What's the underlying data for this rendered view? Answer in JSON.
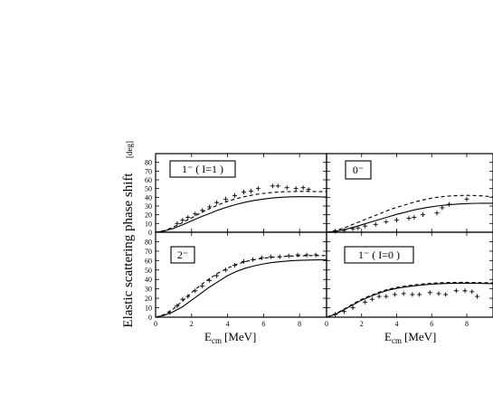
{
  "figure": {
    "ylabel": "Elastic scattering phase shift",
    "ylabel_unit": "[deg]",
    "xlabel_main": "E",
    "xlabel_sub": "cm",
    "xlabel_unit": "[MeV]"
  },
  "chart_data": [
    {
      "type": "line",
      "panel": "1- (I=1)",
      "title": "1⁻ ( I=1 )",
      "xlim": [
        0,
        9.5
      ],
      "ylim": [
        0,
        90
      ],
      "xticks": [
        0,
        2,
        4,
        6,
        8
      ],
      "yticks": [
        0,
        10,
        20,
        30,
        40,
        50,
        60,
        70,
        80
      ],
      "series": [
        {
          "style": "solid",
          "x": [
            0,
            0.5,
            1,
            1.5,
            2,
            2.5,
            3,
            3.5,
            4,
            4.5,
            5,
            5.5,
            6,
            6.5,
            7,
            7.5,
            8,
            8.5,
            9,
            9.5
          ],
          "y": [
            0,
            1.5,
            4.5,
            8.5,
            13,
            17.5,
            21.5,
            25.5,
            29,
            32,
            34.5,
            36.5,
            38,
            39.2,
            40,
            40.5,
            40.7,
            40.7,
            40.5,
            40.3
          ]
        },
        {
          "style": "dashed",
          "x": [
            0,
            0.5,
            1,
            1.5,
            2,
            2.5,
            3,
            3.5,
            4,
            4.5,
            5,
            5.5,
            6,
            6.5,
            7,
            7.5,
            8,
            8.5,
            9,
            9.5
          ],
          "y": [
            0,
            2,
            6,
            11,
            16.5,
            22,
            27,
            31.5,
            35.5,
            38.5,
            41,
            43,
            44.5,
            45.5,
            46.2,
            46.6,
            46.8,
            46.8,
            46.6,
            46.4
          ]
        },
        {
          "style": "cross",
          "x": [
            1.2,
            1.5,
            1.8,
            2.2,
            2.6,
            3.0,
            3.4,
            3.9,
            4.4,
            4.9,
            5.3,
            5.7,
            6.5,
            6.8,
            7.3,
            7.8,
            8.2,
            8.5
          ],
          "y": [
            10,
            14,
            17,
            21,
            25,
            29,
            34,
            38,
            42,
            46,
            47,
            50,
            53,
            53,
            51,
            50,
            51,
            49
          ]
        }
      ]
    },
    {
      "type": "line",
      "panel": "0-",
      "title": "0⁻",
      "xlim": [
        0,
        9.5
      ],
      "ylim": [
        0,
        90
      ],
      "xticks": [
        0,
        2,
        4,
        6,
        8
      ],
      "yticks": [
        0,
        10,
        20,
        30,
        40,
        50,
        60,
        70,
        80
      ],
      "series": [
        {
          "style": "solid",
          "x": [
            0,
            0.5,
            1,
            1.5,
            2,
            2.5,
            3,
            3.5,
            4,
            4.5,
            5,
            5.5,
            6,
            6.5,
            7,
            7.5,
            8,
            8.5,
            9,
            9.5
          ],
          "y": [
            0,
            1,
            3,
            5.5,
            8.5,
            11.5,
            14.5,
            17.5,
            20.5,
            23,
            25.5,
            27.5,
            29.2,
            30.5,
            31.5,
            32.3,
            32.8,
            33.1,
            33.2,
            33.2
          ]
        },
        {
          "style": "dashed",
          "x": [
            0,
            0.5,
            1,
            1.5,
            2,
            2.5,
            3,
            3.5,
            4,
            4.5,
            5,
            5.5,
            6,
            6.5,
            7,
            7.5,
            8,
            8.5,
            9,
            9.5
          ],
          "y": [
            0,
            2,
            5,
            9,
            13,
            17,
            21,
            25,
            28.5,
            31.5,
            34.5,
            37,
            39,
            40.5,
            41.5,
            42,
            42.2,
            42,
            41.5,
            40.5
          ]
        },
        {
          "style": "cross",
          "x": [
            0.5,
            1.0,
            1.5,
            1.8,
            2.2,
            2.8,
            3.4,
            4.0,
            4.7,
            5.0,
            5.5,
            6.3,
            6.6,
            7.0,
            8.0
          ],
          "y": [
            1,
            2,
            4,
            5,
            7,
            9,
            12,
            14,
            16,
            17,
            20,
            22,
            28,
            32,
            38
          ]
        }
      ]
    },
    {
      "type": "line",
      "panel": "2-",
      "title": "2⁻",
      "xlim": [
        0,
        9.5
      ],
      "ylim": [
        0,
        90
      ],
      "xticks": [
        0,
        2,
        4,
        6,
        8
      ],
      "yticks": [
        0,
        10,
        20,
        30,
        40,
        50,
        60,
        70,
        80
      ],
      "series": [
        {
          "style": "solid",
          "x": [
            0,
            0.5,
            1,
            1.5,
            2,
            2.5,
            3,
            3.5,
            4,
            4.5,
            5,
            5.5,
            6,
            6.5,
            7,
            7.5,
            8,
            8.5,
            9,
            9.5
          ],
          "y": [
            0,
            2,
            6,
            11,
            18,
            25,
            32,
            38,
            44,
            48.5,
            52,
            54.5,
            56.5,
            58,
            59,
            59.7,
            60.2,
            60.5,
            60.7,
            60.8
          ]
        },
        {
          "style": "dashed",
          "x": [
            0,
            0.5,
            1,
            1.5,
            2,
            2.5,
            3,
            3.5,
            4,
            4.5,
            5,
            5.5,
            6,
            6.5,
            7,
            7.5,
            8,
            8.5,
            9,
            9.5
          ],
          "y": [
            0,
            3,
            9,
            17,
            26,
            34,
            41,
            47,
            52,
            56,
            59,
            61,
            62.5,
            63.5,
            64.2,
            64.7,
            65,
            65.2,
            65.3,
            65.3
          ]
        },
        {
          "style": "cross",
          "x": [
            0.8,
            1.2,
            1.5,
            1.8,
            2.2,
            2.6,
            3.0,
            3.4,
            3.9,
            4.4,
            4.9,
            5.4,
            5.9,
            6.4,
            6.9,
            7.4,
            7.9,
            8.4,
            8.9
          ],
          "y": [
            5,
            12,
            19,
            22,
            28,
            33,
            39,
            44,
            50,
            55,
            59,
            61,
            63,
            64,
            64,
            65,
            66,
            66,
            66
          ]
        }
      ]
    },
    {
      "type": "line",
      "panel": "1- (I=0)",
      "title": "1⁻ ( I=0 )",
      "xlim": [
        0,
        9.5
      ],
      "ylim": [
        0,
        90
      ],
      "xticks": [
        0,
        2,
        4,
        6,
        8
      ],
      "yticks": [
        0,
        10,
        20,
        30,
        40,
        50,
        60,
        70,
        80
      ],
      "series": [
        {
          "style": "solid",
          "x": [
            0,
            0.5,
            1,
            1.5,
            2,
            2.5,
            3,
            3.5,
            4,
            4.5,
            5,
            5.5,
            6,
            6.5,
            7,
            7.5,
            8,
            8.5,
            9,
            9.5
          ],
          "y": [
            0,
            3,
            8,
            13,
            18,
            22,
            25.5,
            28.5,
            30.5,
            32,
            33.2,
            34.2,
            35,
            35.5,
            35.8,
            36,
            36,
            35.9,
            35.7,
            35.5
          ]
        },
        {
          "style": "dashed",
          "x": [
            0,
            0.5,
            1,
            1.5,
            2,
            2.5,
            3,
            3.5,
            4,
            4.5,
            5,
            5.5,
            6,
            6.5,
            7,
            7.5,
            8,
            8.5,
            9,
            9.5
          ],
          "y": [
            0,
            3.5,
            8.5,
            14,
            19,
            23,
            26.5,
            29.5,
            31.5,
            33,
            34.2,
            35.2,
            36,
            36.5,
            36.8,
            37,
            37,
            36.8,
            36.6,
            36.3
          ]
        },
        {
          "style": "cross",
          "x": [
            0.5,
            1.0,
            1.5,
            2.2,
            2.6,
            3.0,
            3.4,
            3.9,
            4.4,
            4.9,
            5.3,
            5.9,
            6.4,
            6.8,
            7.4,
            7.9,
            8.3,
            8.6
          ],
          "y": [
            3,
            6,
            10,
            16,
            19,
            22,
            22,
            24,
            25,
            24,
            24,
            26,
            25,
            24,
            28,
            28,
            27,
            22
          ]
        }
      ]
    }
  ]
}
